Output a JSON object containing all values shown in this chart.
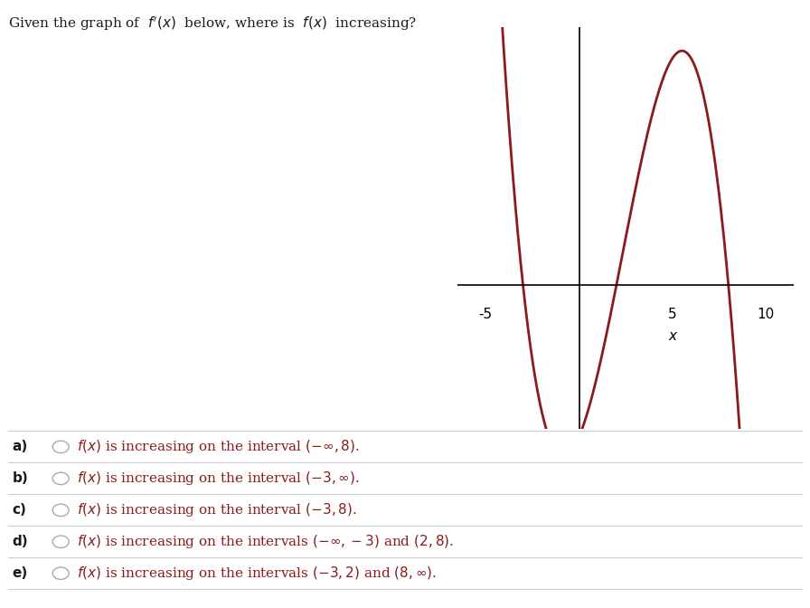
{
  "title_text": "Given the graph of  $f'(x)$  below, where is  $f(x)$  increasing?",
  "curve_color": "#8B1A1A",
  "curve_linewidth": 2.0,
  "xlim": [
    -6.5,
    11.5
  ],
  "ylim": [
    -2.5,
    4.5
  ],
  "xticks": [
    -5,
    5,
    10
  ],
  "xlabel": "x",
  "choices": [
    {
      "label": "a)",
      "text": "$f(x)$ is increasing on the interval $(-\\infty, 8)$."
    },
    {
      "label": "b)",
      "text": "$f(x)$ is increasing on the interval $(-3, \\infty)$."
    },
    {
      "label": "c)",
      "text": "$f(x)$ is increasing on the interval $(-3, 8)$."
    },
    {
      "label": "d)",
      "text": "$f(x)$ is increasing on the intervals $(-\\infty, -3)$ and $(2, 8)$."
    },
    {
      "label": "e)",
      "text": "$f(x)$ is increasing on the intervals $(-3, 2)$ and $(8, \\infty)$."
    }
  ],
  "text_color": "#1a1a1a",
  "choice_color": "#8B1A1A",
  "zeros": [
    -3,
    2,
    8
  ],
  "k": 0.055
}
